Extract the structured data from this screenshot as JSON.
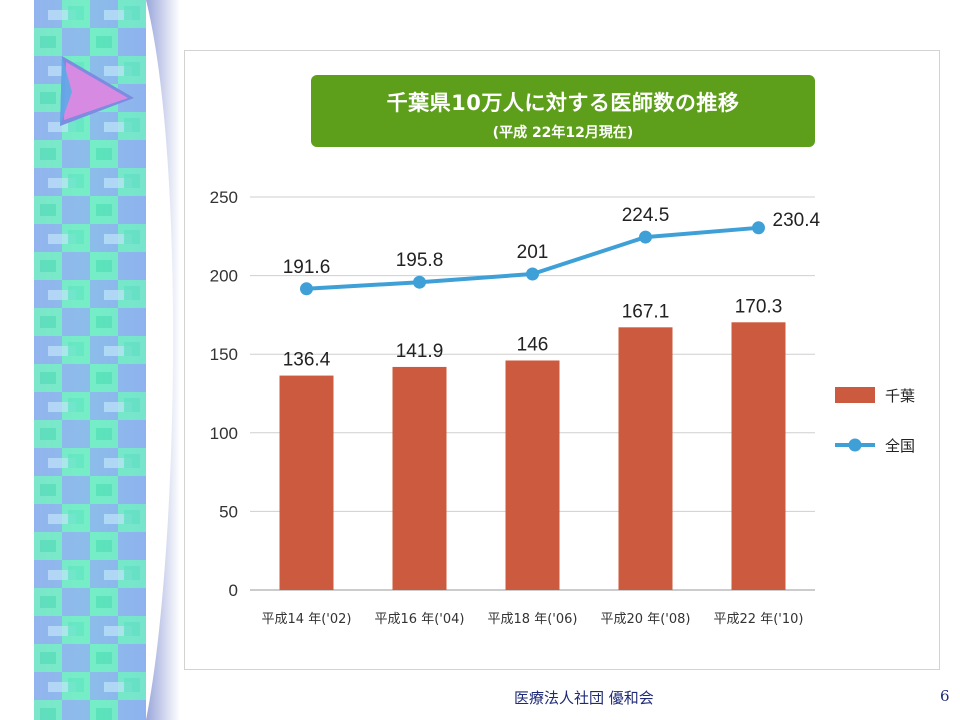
{
  "chart_data": {
    "type": "bar",
    "title": "千葉県10万人に対する医師数の推移",
    "subtitle": "(平成 22年12月現在)",
    "categories": [
      "平成14 年('02)",
      "平成16 年('04)",
      "平成18 年('06)",
      "平成20 年('08)",
      "平成22 年('10)"
    ],
    "ylim": [
      0,
      250
    ],
    "yticks": [
      0,
      50,
      100,
      150,
      200,
      250
    ],
    "grid": true,
    "legend_position": "right",
    "series": [
      {
        "name": "千葉",
        "type": "bar",
        "color": "#cc5a3e",
        "values": [
          136.4,
          141.9,
          146,
          167.1,
          170.3
        ],
        "labels": [
          "136.4",
          "141.9",
          "146",
          "167.1",
          "170.3"
        ]
      },
      {
        "name": "全国",
        "type": "line",
        "color": "#3fa0d8",
        "values": [
          191.6,
          195.8,
          201,
          224.5,
          230.4
        ],
        "labels": [
          "191.6",
          "195.8",
          "201",
          "224.5",
          "230.4"
        ]
      }
    ]
  },
  "footer": {
    "organization": "医療法人社団 優和会",
    "page_number": "6"
  }
}
